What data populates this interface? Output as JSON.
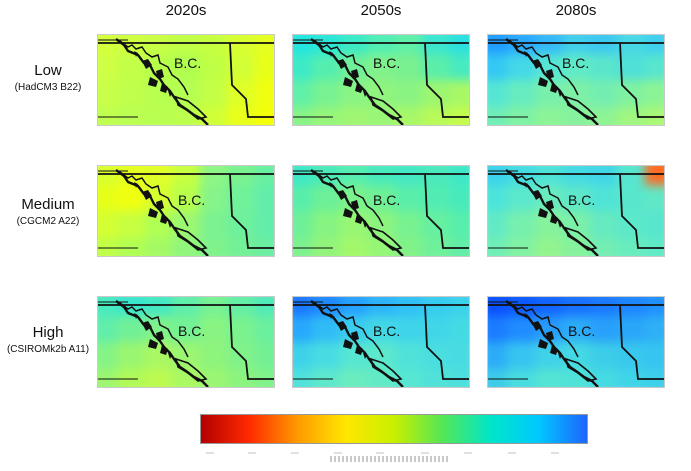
{
  "columns": [
    "2020s",
    "2050s",
    "2080s"
  ],
  "rows": [
    {
      "name": "Low",
      "model": "(HadCM3 B22)"
    },
    {
      "name": "Medium",
      "model": "(CGCM2 A22)"
    },
    {
      "name": "High",
      "model": "(CSIROMk2b A11)"
    }
  ],
  "map_label": "B.C.",
  "colorbar": {
    "colors": [
      "#b30000",
      "#ff2a00",
      "#ff9a00",
      "#ffe600",
      "#c8f000",
      "#55e655",
      "#00e6c8",
      "#00c8ff",
      "#1e64ff"
    ]
  },
  "maps": [
    {
      "row": 0,
      "col": 0,
      "cells": [
        "#d4ff3a",
        "#cfff40",
        "#c8ff45",
        "#c0ff46",
        "#c6ff40",
        "#d8ff30",
        "#e6ff20",
        "#cfff45",
        "#c3ff48",
        "#b8ff4b",
        "#b0ff50",
        "#bfff45",
        "#d2ff35",
        "#e8ff18",
        "#c8ff48",
        "#c0ff4b",
        "#b8ff50",
        "#b4ff52",
        "#c4ff45",
        "#e0ff28",
        "#f0ff10",
        "#c0ff50",
        "#baff52",
        "#b8ff50",
        "#bcff4c",
        "#d0ff38",
        "#e8ff1a",
        "#f4ff08"
      ]
    },
    {
      "row": 0,
      "col": 1,
      "cells": [
        "#22e6e0",
        "#2ae6d8",
        "#3aeac8",
        "#50eeb6",
        "#60f0a8",
        "#3ae6d0",
        "#2ae0e0",
        "#3ceac8",
        "#55eeb0",
        "#70f098",
        "#80f28c",
        "#7af090",
        "#5aeeaa",
        "#48eac0",
        "#60f0a8",
        "#78f292",
        "#8af484",
        "#90f47e",
        "#8af482",
        "#9cf670",
        "#a8f866",
        "#88f486",
        "#96f67a",
        "#a0f672",
        "#9af676",
        "#a8f868",
        "#b8fa58",
        "#c4fb4c"
      ]
    },
    {
      "row": 0,
      "col": 2,
      "cells": [
        "#1e9cff",
        "#2aa8ff",
        "#34b8f8",
        "#40cfec",
        "#3cc8f0",
        "#48d8e6",
        "#3ed0ee",
        "#34c8f4",
        "#44d8e8",
        "#56e6d4",
        "#60eac8",
        "#5ae6cc",
        "#50e0d8",
        "#58e6ce",
        "#56e6d4",
        "#66ecc0",
        "#78f0ac",
        "#7ef0a6",
        "#74eeb0",
        "#80f2a0",
        "#8cf494",
        "#70eeb6",
        "#80f2a4",
        "#8cf496",
        "#86f29e",
        "#8ef494",
        "#a0f680",
        "#aaf874"
      ]
    },
    {
      "row": 1,
      "col": 0,
      "cells": [
        "#d8ff30",
        "#e4ff20",
        "#e0ff28",
        "#c8ff40",
        "#8ef684",
        "#7af290",
        "#68f0a2",
        "#e6ff18",
        "#f0ff10",
        "#d6ff30",
        "#b8ff4c",
        "#86f48a",
        "#70f29a",
        "#62eeaa",
        "#d4ff32",
        "#c8ff40",
        "#b0ff54",
        "#9cf870",
        "#7cf290",
        "#6ef09c",
        "#62eeaa",
        "#c0ff48",
        "#b0ff54",
        "#a4fa64",
        "#90f67c",
        "#80f28c",
        "#74f096",
        "#6aeea2"
      ]
    },
    {
      "row": 1,
      "col": 1,
      "cells": [
        "#3ee8c8",
        "#4aeab8",
        "#56eeb0",
        "#48eabe",
        "#44e8c4",
        "#4aeabc",
        "#40e8c8",
        "#58eeaa",
        "#6cf098",
        "#7cf28c",
        "#6ef096",
        "#5aeeaa",
        "#52ecb2",
        "#48eabc",
        "#6ef098",
        "#86f482",
        "#98f674",
        "#8cf47e",
        "#78f290",
        "#66f0a0",
        "#58eeac",
        "#7ef28e",
        "#92f47a",
        "#a2f86a",
        "#96f676",
        "#82f288",
        "#70f09a",
        "#62eea6"
      ]
    },
    {
      "row": 1,
      "col": 2,
      "cells": [
        "#3ad2ec",
        "#44dce2",
        "#4ee2d8",
        "#44dae4",
        "#40d6e8",
        "#56e6d0",
        "#ff6a20",
        "#4ce4da",
        "#5ce8cc",
        "#68ecbe",
        "#5ee8c8",
        "#50e4d6",
        "#58e6cc",
        "#60e8c6",
        "#62eac6",
        "#76f0ae",
        "#86f29c",
        "#7af0a8",
        "#66eac0",
        "#5ce8ca",
        "#58e6ce",
        "#70eeb6",
        "#82f2a2",
        "#92f48e",
        "#86f29c",
        "#74eeb2",
        "#68ecbe",
        "#60eac6"
      ]
    },
    {
      "row": 2,
      "col": 0,
      "cells": [
        "#48eac0",
        "#3ae6cc",
        "#44e8c4",
        "#60eeaa",
        "#78f292",
        "#64eea6",
        "#50eab8",
        "#60eeaa",
        "#72f096",
        "#80f28a",
        "#74f294",
        "#8af482",
        "#7af28e",
        "#6af09e",
        "#84f486",
        "#9af670",
        "#aaf864",
        "#9cf670",
        "#8ef47c",
        "#80f28a",
        "#74f094",
        "#9cf670",
        "#b0fa58",
        "#bcfa50",
        "#aaf862",
        "#9af672",
        "#8cf47e",
        "#80f28a"
      ]
    },
    {
      "row": 2,
      "col": 1,
      "cells": [
        "#1a78ff",
        "#1e8aff",
        "#26a0ff",
        "#2cb4fa",
        "#30c0f6",
        "#36ccf0",
        "#3ad2ec",
        "#26a8fc",
        "#30bcf6",
        "#3acdee",
        "#42d8e6",
        "#3ed4ea",
        "#40d6e8",
        "#44dae4",
        "#3ed2ea",
        "#48dce2",
        "#56e6d2",
        "#5ce8cc",
        "#50e2da",
        "#4adee0",
        "#48dce2",
        "#50e2da",
        "#5ee8cc",
        "#6aecbe",
        "#62eac6",
        "#56e6d2",
        "#50e2d8",
        "#4edfdc"
      ]
    },
    {
      "row": 2,
      "col": 2,
      "cells": [
        "#0a50ff",
        "#0c5aff",
        "#1264ff",
        "#1870ff",
        "#1a7aff",
        "#1e86ff",
        "#2090ff",
        "#1a7cff",
        "#208cff",
        "#269cfc",
        "#2cacf8",
        "#28a0fa",
        "#2aa6f8",
        "#2eb0f6",
        "#2cacf8",
        "#36c4f0",
        "#40d2e8",
        "#44d8e4",
        "#3ccde8",
        "#38c8ee",
        "#36c4f0",
        "#3ccce8",
        "#48dce0",
        "#54e4d4",
        "#50e2d8",
        "#46dae2",
        "#40d4e8",
        "#3cd0ea"
      ]
    }
  ]
}
